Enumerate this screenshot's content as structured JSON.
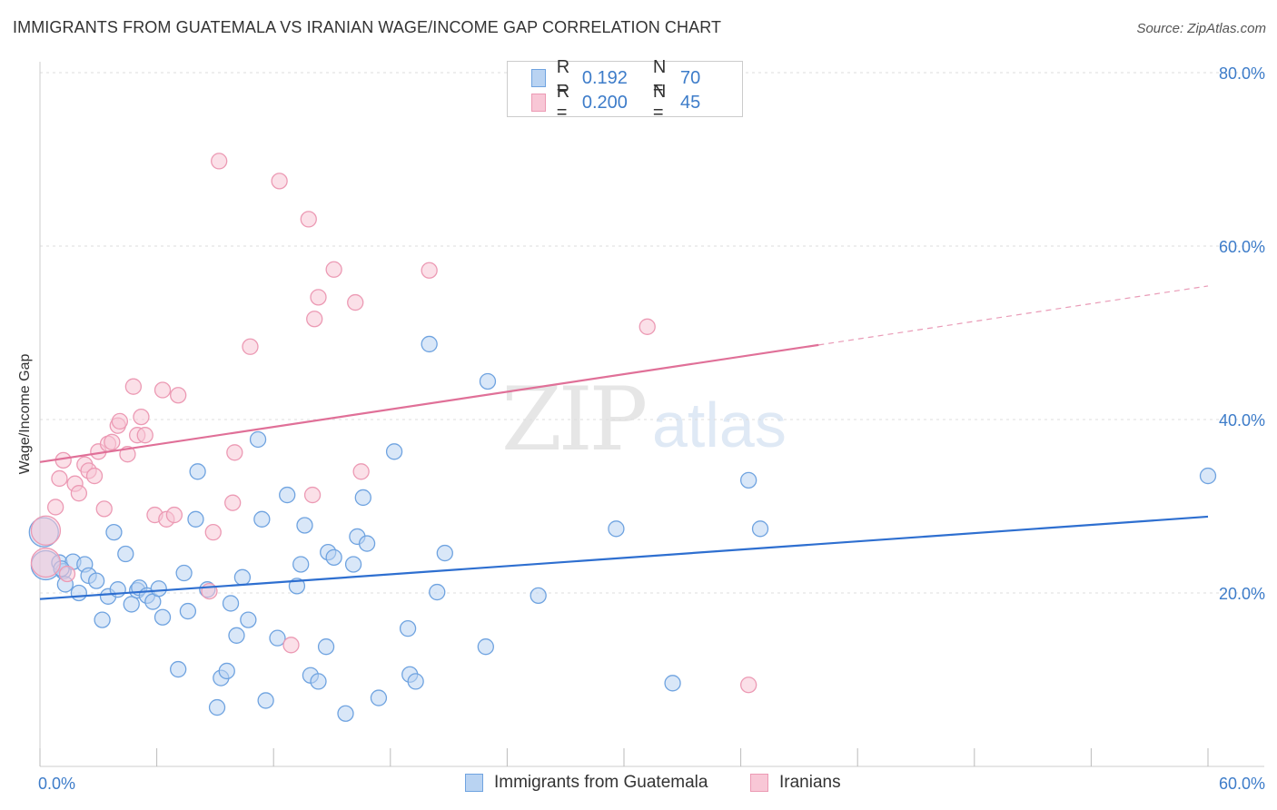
{
  "title": "IMMIGRANTS FROM GUATEMALA VS IRANIAN WAGE/INCOME GAP CORRELATION CHART",
  "source": "Source: ZipAtlas.com",
  "watermark": {
    "zip": "ZIP",
    "atlas": "atlas"
  },
  "legend": {
    "rows": [
      {
        "r_label": "R =",
        "r_value": "0.192",
        "n_label": "N =",
        "n_value": "70",
        "color": "#a9c8ee"
      },
      {
        "r_label": "R =",
        "r_value": "0.200",
        "n_label": "N =",
        "n_value": "45",
        "color": "#f5b5c8"
      }
    ]
  },
  "bottom_legend": [
    {
      "label": "Immigrants from Guatemala",
      "color": "#a9c8ee"
    },
    {
      "label": "Iranians",
      "color": "#f5b5c8"
    }
  ],
  "chart_data": {
    "type": "scatter",
    "title": "IMMIGRANTS FROM GUATEMALA VS IRANIAN WAGE/INCOME GAP CORRELATION CHART",
    "xlabel": "",
    "ylabel": "Wage/Income Gap",
    "xlim": [
      0,
      60
    ],
    "ylim": [
      0,
      80
    ],
    "x_tick_labels": [
      "0.0%",
      "60.0%"
    ],
    "y_tick_labels": [
      "20.0%",
      "40.0%",
      "60.0%",
      "80.0%"
    ],
    "y_ticks": [
      20,
      40,
      60,
      80
    ],
    "grid": "horizontal dashed",
    "legend_position": "top-center",
    "series": [
      {
        "name": "Immigrants from Guatemala",
        "color": "#6fa3e0",
        "fill": "#b9d3f2",
        "trend": {
          "x": [
            0,
            60
          ],
          "y": [
            19.3,
            28.8
          ],
          "color": "#2e6fd0"
        },
        "points": [
          [
            0.2,
            27.0
          ],
          [
            0.3,
            23.2
          ],
          [
            1.0,
            23.5
          ],
          [
            1.2,
            22.5
          ],
          [
            1.3,
            21.0
          ],
          [
            1.7,
            23.6
          ],
          [
            2.0,
            20.0
          ],
          [
            2.3,
            23.3
          ],
          [
            2.5,
            22.0
          ],
          [
            2.9,
            21.4
          ],
          [
            3.2,
            16.9
          ],
          [
            3.5,
            19.6
          ],
          [
            3.8,
            27.0
          ],
          [
            4.0,
            20.4
          ],
          [
            4.4,
            24.5
          ],
          [
            4.7,
            18.7
          ],
          [
            5.0,
            20.3
          ],
          [
            5.1,
            20.6
          ],
          [
            5.5,
            19.7
          ],
          [
            5.8,
            19.0
          ],
          [
            6.1,
            20.5
          ],
          [
            6.3,
            17.2
          ],
          [
            7.1,
            11.2
          ],
          [
            7.4,
            22.3
          ],
          [
            7.6,
            17.9
          ],
          [
            8.0,
            28.5
          ],
          [
            8.1,
            34.0
          ],
          [
            8.6,
            20.4
          ],
          [
            9.1,
            6.8
          ],
          [
            9.3,
            10.2
          ],
          [
            9.6,
            11.0
          ],
          [
            9.8,
            18.8
          ],
          [
            10.1,
            15.1
          ],
          [
            10.4,
            21.8
          ],
          [
            10.7,
            16.9
          ],
          [
            11.2,
            37.7
          ],
          [
            11.4,
            28.5
          ],
          [
            11.6,
            7.6
          ],
          [
            12.2,
            14.8
          ],
          [
            12.7,
            31.3
          ],
          [
            13.2,
            20.8
          ],
          [
            13.4,
            23.3
          ],
          [
            13.6,
            27.8
          ],
          [
            13.9,
            10.5
          ],
          [
            14.3,
            9.8
          ],
          [
            14.7,
            13.8
          ],
          [
            14.8,
            24.7
          ],
          [
            15.1,
            24.1
          ],
          [
            15.7,
            6.1
          ],
          [
            16.1,
            23.3
          ],
          [
            16.3,
            26.5
          ],
          [
            16.6,
            31.0
          ],
          [
            16.8,
            25.7
          ],
          [
            17.4,
            7.9
          ],
          [
            18.2,
            36.3
          ],
          [
            18.9,
            15.9
          ],
          [
            19.0,
            10.6
          ],
          [
            19.3,
            9.8
          ],
          [
            20.0,
            48.7
          ],
          [
            20.4,
            20.1
          ],
          [
            20.8,
            24.6
          ],
          [
            22.9,
            13.8
          ],
          [
            23.0,
            44.4
          ],
          [
            25.6,
            19.7
          ],
          [
            29.6,
            27.4
          ],
          [
            32.5,
            9.6
          ],
          [
            36.4,
            33.0
          ],
          [
            37.0,
            27.4
          ],
          [
            60.0,
            33.5
          ],
          [
            1.1,
            22.8
          ]
        ]
      },
      {
        "name": "Iranians",
        "color": "#ec9ab4",
        "fill": "#f8c7d6",
        "trend": {
          "x": [
            0,
            40
          ],
          "y": [
            35.1,
            48.6
          ],
          "dashed_to": {
            "x": 60,
            "y": 55.4
          },
          "color": "#e07098"
        },
        "points": [
          [
            0.3,
            23.5
          ],
          [
            0.3,
            27.2
          ],
          [
            0.8,
            29.9
          ],
          [
            1.0,
            33.2
          ],
          [
            1.2,
            35.3
          ],
          [
            1.4,
            22.2
          ],
          [
            1.8,
            32.6
          ],
          [
            2.0,
            31.5
          ],
          [
            2.3,
            34.8
          ],
          [
            2.5,
            34.1
          ],
          [
            2.8,
            33.5
          ],
          [
            3.0,
            36.3
          ],
          [
            3.3,
            29.7
          ],
          [
            3.5,
            37.2
          ],
          [
            3.7,
            37.4
          ],
          [
            4.0,
            39.3
          ],
          [
            4.1,
            39.8
          ],
          [
            4.5,
            36.0
          ],
          [
            4.8,
            43.8
          ],
          [
            5.0,
            38.2
          ],
          [
            5.2,
            40.3
          ],
          [
            5.4,
            38.2
          ],
          [
            5.9,
            29.0
          ],
          [
            6.3,
            43.4
          ],
          [
            6.5,
            28.5
          ],
          [
            6.9,
            29.0
          ],
          [
            7.1,
            42.8
          ],
          [
            8.7,
            20.2
          ],
          [
            8.9,
            27.0
          ],
          [
            9.2,
            69.8
          ],
          [
            9.9,
            30.4
          ],
          [
            10.0,
            36.2
          ],
          [
            10.8,
            48.4
          ],
          [
            12.3,
            67.5
          ],
          [
            12.9,
            14.0
          ],
          [
            13.8,
            63.1
          ],
          [
            14.0,
            31.3
          ],
          [
            14.1,
            51.6
          ],
          [
            14.3,
            54.1
          ],
          [
            15.1,
            57.3
          ],
          [
            16.2,
            53.5
          ],
          [
            16.5,
            34.0
          ],
          [
            20.0,
            57.2
          ],
          [
            31.2,
            50.7
          ],
          [
            36.4,
            9.4
          ]
        ]
      }
    ]
  }
}
